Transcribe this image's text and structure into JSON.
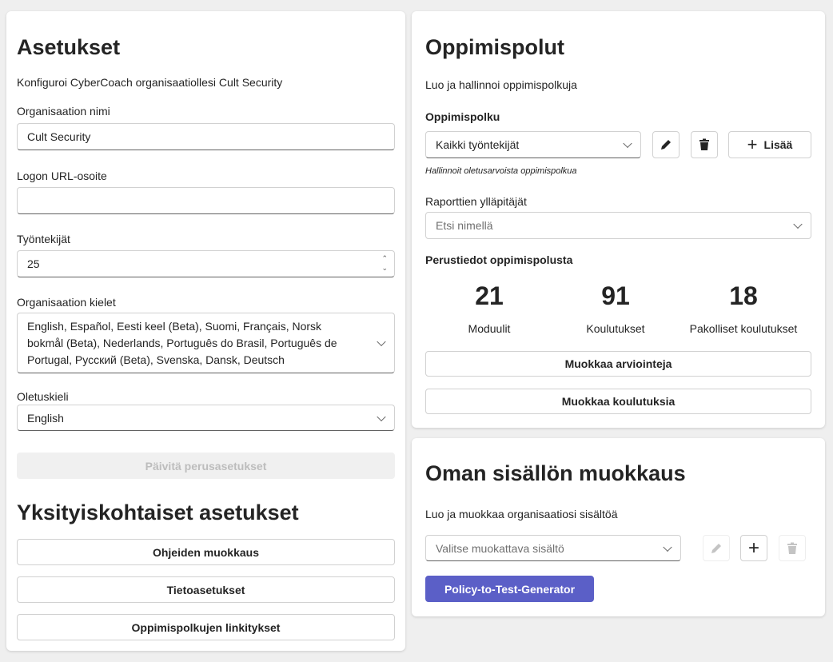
{
  "settings": {
    "title": "Asetukset",
    "description": "Konfiguroi CyberCoach organisaatiollesi Cult Security",
    "org_name_label": "Organisaation nimi",
    "org_name_value": "Cult Security",
    "logo_label": "Logon URL-osoite",
    "logo_value": "",
    "employees_label": "Työntekijät",
    "employees_value": "25",
    "languages_label": "Organisaation kielet",
    "languages_value": "English, Español, Eesti keel (Beta), Suomi, Français, Norsk bokmål (Beta), Nederlands, Português do Brasil, Português de Portugal, Русский (Beta), Svenska, Dansk, Deutsch",
    "default_lang_label": "Oletuskieli",
    "default_lang_value": "English",
    "update_button": "Päivitä perusasetukset",
    "detailed_title": "Yksityiskohtaiset asetukset",
    "detailed_buttons": [
      "Ohjeiden muokkaus",
      "Tietoasetukset",
      "Oppimispolkujen linkitykset"
    ]
  },
  "paths": {
    "title": "Oppimispolut",
    "description": "Luo ja hallinnoi oppimispolkuja",
    "path_label": "Oppimispolku",
    "path_value": "Kaikki työntekijät",
    "add_button": "Lisää",
    "hint": "Hallinnoit oletusarvoista oppimispolkua",
    "admins_label": "Raporttien ylläpitäjät",
    "admins_placeholder": "Etsi nimellä",
    "stats_title": "Perustiedot oppimispolusta",
    "stats": [
      {
        "value": "21",
        "label": "Moduulit"
      },
      {
        "value": "91",
        "label": "Koulutukset"
      },
      {
        "value": "18",
        "label": "Pakolliset koulutukset"
      }
    ],
    "edit_assessments": "Muokkaa arviointeja",
    "edit_trainings": "Muokkaa koulutuksia"
  },
  "content": {
    "title": "Oman sisällön muokkaus",
    "description": "Luo ja muokkaa organisaatiosi sisältöä",
    "select_placeholder": "Valitse muokattava sisältö",
    "generator_button": "Policy-to-Test-Generator",
    "accent": "#5b5fc7"
  }
}
